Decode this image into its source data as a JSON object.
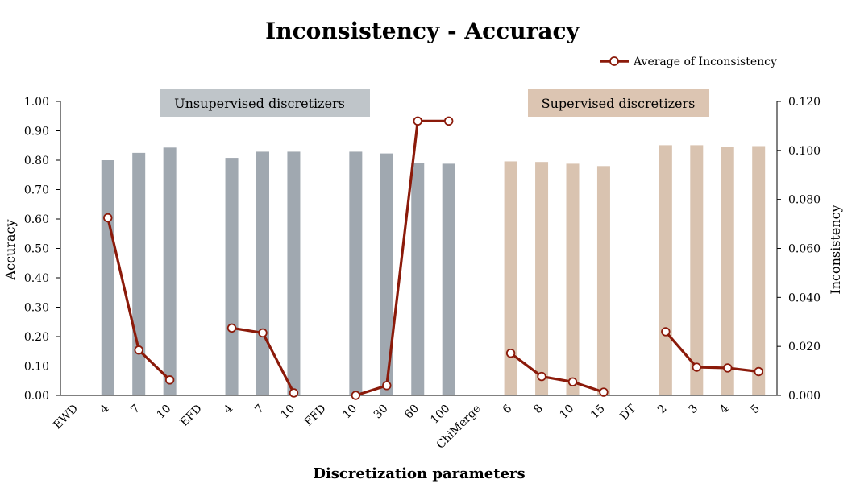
{
  "chart_data": {
    "type": "bar",
    "title": "Inconsistency - Accuracy",
    "xlabel": "Discretization parameters",
    "ylabel": "Accuracy",
    "y2label": "Inconsistency",
    "categories": [
      "EWD",
      "4",
      "7",
      "10",
      "EFD",
      "4",
      "7",
      "10",
      "FFD",
      "10",
      "30",
      "60",
      "100",
      "ChiMerge",
      "6",
      "8",
      "10",
      "15",
      "DT",
      "2",
      "3",
      "4",
      "5"
    ],
    "ylim": [
      0,
      1.0
    ],
    "y2lim": [
      0,
      0.12
    ],
    "yticks": [
      "0.00",
      "0.10",
      "0.20",
      "0.30",
      "0.40",
      "0.50",
      "0.60",
      "0.70",
      "0.80",
      "0.90",
      "1.00"
    ],
    "y2ticks": [
      "0.000",
      "0.020",
      "0.040",
      "0.060",
      "0.080",
      "0.100",
      "0.120"
    ],
    "series": [
      {
        "values": [
          null,
          0.8,
          0.825,
          0.843,
          null,
          0.808,
          0.829,
          0.829,
          null,
          0.829,
          0.823,
          0.79,
          0.788,
          null,
          0.796,
          0.794,
          0.788,
          0.78,
          null,
          0.851,
          0.851,
          0.846,
          0.848
        ]
      },
      {
        "name": "Average of Inconsistency",
        "type": "line",
        "axis": "right",
        "values": [
          null,
          0.0725,
          0.0185,
          0.0063,
          null,
          0.0275,
          0.0255,
          0.001,
          null,
          0.0,
          0.004,
          0.112,
          0.112,
          null,
          0.0172,
          0.0077,
          0.0055,
          0.0013,
          null,
          0.026,
          0.0115,
          0.0112,
          0.0097
        ]
      }
    ],
    "groups": [
      {
        "label": "Unsupervised discretizers",
        "color": "#bfc5c9"
      },
      {
        "label": "Supervised discretizers",
        "color": "#dcc5b2"
      }
    ],
    "colors": {
      "unsupervised_bar": "#a0a8b0",
      "supervised_bar": "#d9c3b0",
      "line": "#8b1a0a"
    },
    "legend_position": "top-right",
    "grid": false
  }
}
